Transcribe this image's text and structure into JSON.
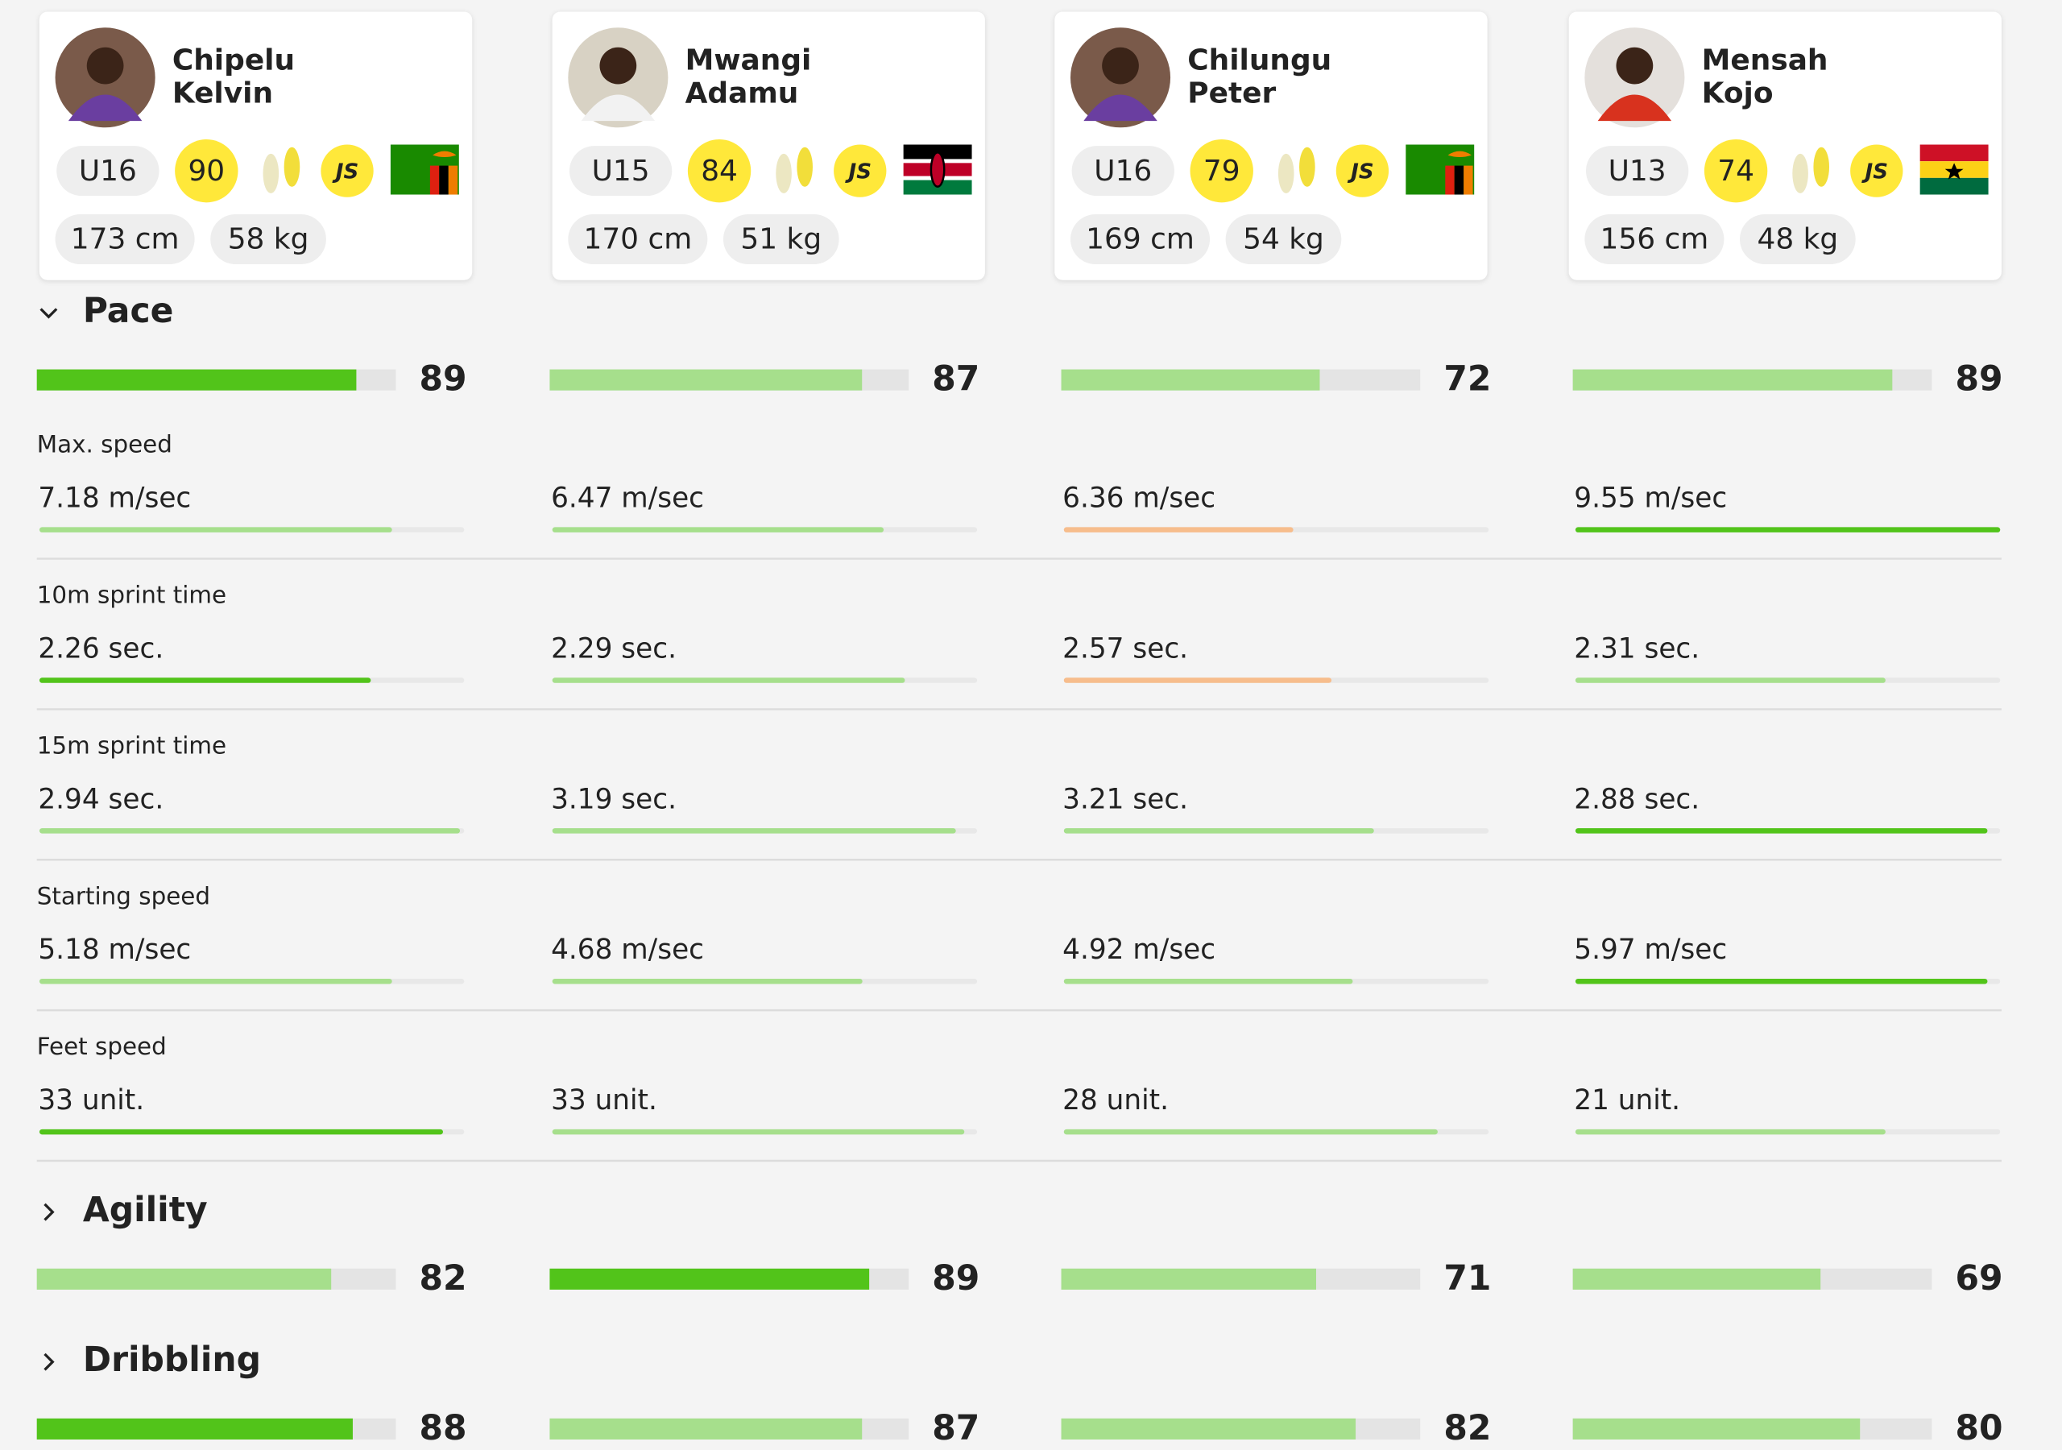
{
  "players": [
    {
      "first": "Chipelu",
      "last": "Kelvin",
      "age_group": "U16",
      "rating": 90,
      "badge": "JS",
      "height": "173 cm",
      "weight": "58 kg"
    },
    {
      "first": "Mwangi",
      "last": "Adamu",
      "age_group": "U15",
      "rating": 84,
      "badge": "JS",
      "height": "170 cm",
      "weight": "51 kg"
    },
    {
      "first": "Chilungu",
      "last": "Peter",
      "age_group": "U16",
      "rating": 79,
      "badge": "JS",
      "height": "169 cm",
      "weight": "54 kg"
    },
    {
      "first": "Mensah",
      "last": "Kojo",
      "age_group": "U13",
      "rating": 74,
      "badge": "JS",
      "height": "156 cm",
      "weight": "48 kg"
    }
  ],
  "score_range": [
    0,
    100
  ],
  "colors": {
    "best": "#52c41a",
    "good": "#a6df8c",
    "low": "#f7bd8c"
  },
  "sections": [
    {
      "title": "Pace",
      "scores": [
        89,
        87,
        72,
        89
      ],
      "score_status": [
        "best",
        "good",
        "good",
        "good"
      ],
      "metrics": [
        {
          "label": "Max. speed",
          "cells": [
            {
              "text": "7.18 m/sec",
              "fill": 83,
              "status": "good"
            },
            {
              "text": "6.47 m/sec",
              "fill": 78,
              "status": "good"
            },
            {
              "text": "6.36 m/sec",
              "fill": 54,
              "status": "low"
            },
            {
              "text": "9.55 m/sec",
              "fill": 100,
              "status": "best"
            }
          ]
        },
        {
          "label": "10m sprint time",
          "cells": [
            {
              "text": "2.26 sec.",
              "fill": 78,
              "status": "best"
            },
            {
              "text": "2.29 sec.",
              "fill": 83,
              "status": "good"
            },
            {
              "text": "2.57 sec.",
              "fill": 63,
              "status": "low"
            },
            {
              "text": "2.31 sec.",
              "fill": 73,
              "status": "good"
            }
          ]
        },
        {
          "label": "15m sprint time",
          "cells": [
            {
              "text": "2.94 sec.",
              "fill": 99,
              "status": "good"
            },
            {
              "text": "3.19 sec.",
              "fill": 95,
              "status": "good"
            },
            {
              "text": "3.21 sec.",
              "fill": 73,
              "status": "good"
            },
            {
              "text": "2.88 sec.",
              "fill": 97,
              "status": "best"
            }
          ]
        },
        {
          "label": "Starting speed",
          "cells": [
            {
              "text": "5.18 m/sec",
              "fill": 83,
              "status": "good"
            },
            {
              "text": "4.68 m/sec",
              "fill": 73,
              "status": "good"
            },
            {
              "text": "4.92 m/sec",
              "fill": 68,
              "status": "good"
            },
            {
              "text": "5.97 m/sec",
              "fill": 97,
              "status": "best"
            }
          ]
        },
        {
          "label": "Feet speed",
          "cells": [
            {
              "text": "33 unit.",
              "fill": 95,
              "status": "best"
            },
            {
              "text": "33 unit.",
              "fill": 97,
              "status": "good"
            },
            {
              "text": "28 unit.",
              "fill": 88,
              "status": "good"
            },
            {
              "text": "21 unit.",
              "fill": 73,
              "status": "good"
            }
          ]
        }
      ]
    },
    {
      "title": "Agility",
      "scores": [
        82,
        89,
        71,
        69
      ],
      "score_status": [
        "good",
        "best",
        "good",
        "good"
      ],
      "metrics": []
    },
    {
      "title": "Dribbling",
      "scores": [
        88,
        87,
        82,
        80
      ],
      "score_status": [
        "best",
        "good",
        "good",
        "good"
      ],
      "metrics": []
    }
  ]
}
